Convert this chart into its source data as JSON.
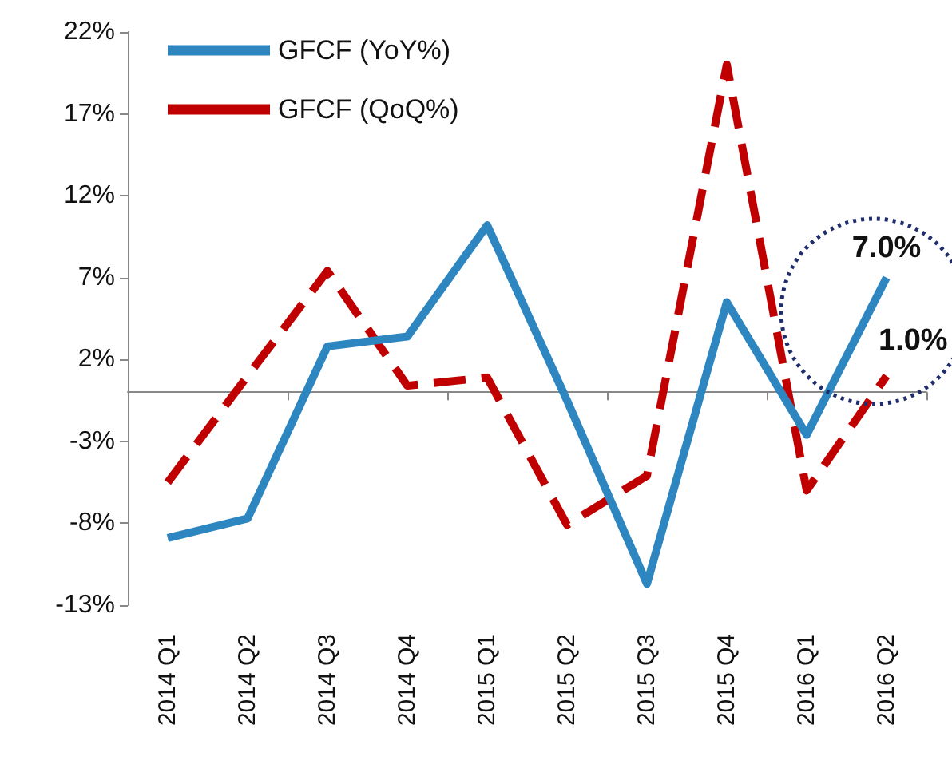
{
  "chart_data": {
    "type": "line",
    "categories": [
      "2014 Q1",
      "2014 Q2",
      "2014 Q3",
      "2014 Q4",
      "2015 Q1",
      "2015 Q2",
      "2015 Q3",
      "2015 Q4",
      "2016 Q1",
      "2016 Q2"
    ],
    "series": [
      {
        "name": "GFCF (YoY%)",
        "color": "#2e86c1",
        "line_style": "solid",
        "values": [
          -8.9,
          -7.7,
          2.8,
          3.4,
          10.2,
          -0.5,
          -11.7,
          5.5,
          -2.6,
          7.0
        ],
        "value_labels": [
          null,
          null,
          null,
          null,
          null,
          null,
          null,
          null,
          null,
          "7.0%"
        ]
      },
      {
        "name": "GFCF (QoQ%)",
        "color": "#c00000",
        "line_style": "dashed",
        "values": [
          -5.5,
          1.0,
          7.4,
          0.4,
          0.9,
          -8.1,
          -5.1,
          20.0,
          -6.0,
          1.0
        ],
        "value_labels": [
          null,
          null,
          null,
          null,
          null,
          null,
          null,
          null,
          null,
          "1.0%"
        ]
      }
    ],
    "ylim": [
      -13,
      22
    ],
    "yticks": [
      {
        "value": -13,
        "label": "-13%"
      },
      {
        "value": -8,
        "label": "-8%"
      },
      {
        "value": -3,
        "label": "-3%"
      },
      {
        "value": 2,
        "label": "2%"
      },
      {
        "value": 7,
        "label": "7%"
      },
      {
        "value": 12,
        "label": "12%"
      },
      {
        "value": 17,
        "label": "17%"
      },
      {
        "value": 22,
        "label": "22%"
      }
    ],
    "grid": false,
    "legend": "top left",
    "marker": "none"
  }
}
